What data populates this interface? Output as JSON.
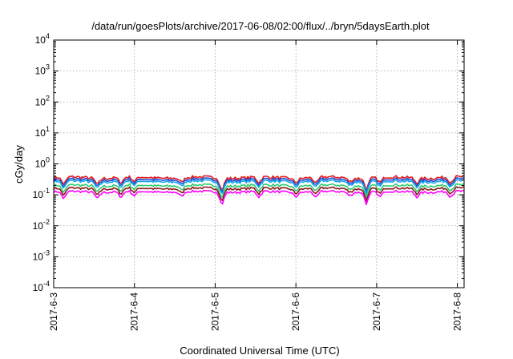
{
  "chart_data": {
    "type": "line",
    "title": "/data/run/goesPlots/archive/2017-06-08/02:00/flux/../bryn/5daysEarth.plot",
    "xlabel": "Coordinated Universal Time (UTC)",
    "ylabel": "cGy/day",
    "y_scale": "log",
    "ylim": [
      0.0001,
      10000
    ],
    "y_ticks": [
      {
        "base": "10",
        "exp": "-4",
        "value": 0.0001
      },
      {
        "base": "10",
        "exp": "-3",
        "value": 0.001
      },
      {
        "base": "10",
        "exp": "-2",
        "value": 0.01
      },
      {
        "base": "10",
        "exp": "-1",
        "value": 0.1
      },
      {
        "base": "10",
        "exp": "0",
        "value": 1
      },
      {
        "base": "10",
        "exp": "1",
        "value": 10
      },
      {
        "base": "10",
        "exp": "2",
        "value": 100
      },
      {
        "base": "10",
        "exp": "3",
        "value": 1000
      },
      {
        "base": "10",
        "exp": "4",
        "value": 10000
      }
    ],
    "x_ticks": [
      "2017-6-3",
      "2017-6-4",
      "2017-6-5",
      "2017-6-6",
      "2017-6-7",
      "2017-6-8"
    ],
    "xlim": [
      "2017-06-03 00:00",
      "2017-06-08 02:00"
    ],
    "grid": true,
    "series": [
      {
        "color": "#e41a1c",
        "level": 0.36
      },
      {
        "color": "#1f4fd8",
        "level": 0.31
      },
      {
        "color": "#1aa7e6",
        "level": 0.27
      },
      {
        "color": "#2ecc71",
        "level": 0.2
      },
      {
        "color": "#8b1a1a",
        "level": 0.16
      },
      {
        "color": "#ff00ff",
        "level": 0.125
      }
    ],
    "dips": [
      {
        "time": "2017-06-03 03:00",
        "factor": 0.55
      },
      {
        "time": "2017-06-03 13:00",
        "factor": 0.6
      },
      {
        "time": "2017-06-03 20:00",
        "factor": 0.65
      },
      {
        "time": "2017-06-04 00:00",
        "factor": 0.7
      },
      {
        "time": "2017-06-04 14:00",
        "factor": 0.7
      },
      {
        "time": "2017-06-05 02:00",
        "factor": 0.35
      },
      {
        "time": "2017-06-05 13:00",
        "factor": 0.65
      },
      {
        "time": "2017-06-06 00:00",
        "factor": 0.7
      },
      {
        "time": "2017-06-06 06:00",
        "factor": 0.6
      },
      {
        "time": "2017-06-06 16:00",
        "factor": 0.75
      },
      {
        "time": "2017-06-06 21:00",
        "factor": 0.4
      },
      {
        "time": "2017-06-07 01:00",
        "factor": 0.65
      },
      {
        "time": "2017-06-07 12:00",
        "factor": 0.7
      },
      {
        "time": "2017-06-07 22:00",
        "factor": 0.65
      }
    ]
  }
}
